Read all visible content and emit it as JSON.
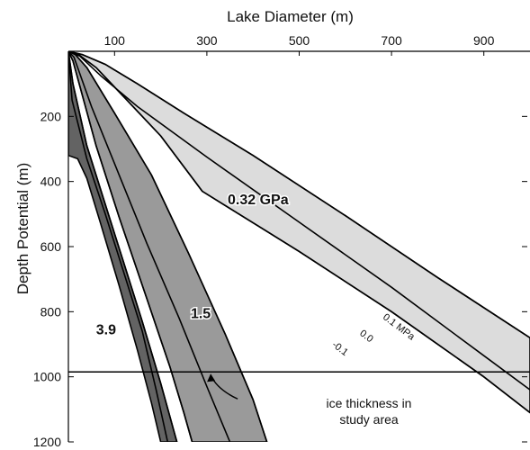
{
  "chart_data": {
    "type": "line",
    "title": "",
    "xlabel": "Lake Diameter (m)",
    "ylabel": "Depth Potential (m)",
    "x_axis_position": "top",
    "y_axis_inverted": true,
    "xlim": [
      0,
      1000
    ],
    "ylim": [
      0,
      1200
    ],
    "x_ticks": [
      100,
      300,
      500,
      700,
      900
    ],
    "y_ticks": [
      200,
      400,
      600,
      800,
      1000,
      1200
    ],
    "grid": false,
    "colors": {
      "band_0.32": "#dcdcdc",
      "band_1.5": "#9a9a9a",
      "band_3.9": "#636363",
      "lines": "#000000"
    },
    "bands": [
      {
        "label": "0.32 GPa",
        "upper": [
          [
            0,
            0
          ],
          [
            30,
            10
          ],
          [
            80,
            40
          ],
          [
            150,
            100
          ],
          [
            250,
            190
          ],
          [
            400,
            320
          ],
          [
            600,
            505
          ],
          [
            800,
            695
          ],
          [
            1000,
            880
          ]
        ],
        "lower": [
          [
            0,
            0
          ],
          [
            20,
            8
          ],
          [
            60,
            50
          ],
          [
            120,
            140
          ],
          [
            200,
            260
          ],
          [
            290,
            430
          ],
          [
            500,
            615
          ],
          [
            700,
            800
          ],
          [
            900,
            1000
          ],
          [
            1000,
            1110
          ]
        ]
      },
      {
        "label": "1.5",
        "upper": [
          [
            0,
            0
          ],
          [
            15,
            10
          ],
          [
            40,
            50
          ],
          [
            100,
            190
          ],
          [
            180,
            380
          ],
          [
            260,
            620
          ],
          [
            340,
            870
          ],
          [
            400,
            1070
          ],
          [
            430,
            1200
          ]
        ],
        "lower": [
          [
            0,
            0
          ],
          [
            10,
            30
          ],
          [
            60,
            290
          ],
          [
            110,
            510
          ],
          [
            170,
            760
          ],
          [
            220,
            970
          ],
          [
            250,
            1110
          ],
          [
            268,
            1200
          ]
        ]
      },
      {
        "label": "3.9",
        "upper": [
          [
            0,
            0
          ],
          [
            10,
            100
          ],
          [
            40,
            290
          ],
          [
            80,
            470
          ],
          [
            120,
            650
          ],
          [
            160,
            830
          ],
          [
            200,
            1020
          ],
          [
            235,
            1200
          ]
        ],
        "lower": [
          [
            0,
            320
          ],
          [
            20,
            330
          ],
          [
            40,
            390
          ],
          [
            70,
            530
          ],
          [
            110,
            720
          ],
          [
            150,
            920
          ],
          [
            180,
            1080
          ],
          [
            200,
            1200
          ]
        ]
      }
    ],
    "lines": [
      {
        "label": "0.1 MPa",
        "points": [
          [
            0,
            0
          ],
          [
            30,
            10
          ],
          [
            80,
            40
          ],
          [
            150,
            100
          ],
          [
            250,
            190
          ],
          [
            400,
            320
          ],
          [
            600,
            505
          ],
          [
            800,
            695
          ],
          [
            1000,
            880
          ]
        ]
      },
      {
        "label": "0.0",
        "points": [
          [
            0,
            0
          ],
          [
            25,
            15
          ],
          [
            70,
            75
          ],
          [
            150,
            170
          ],
          [
            300,
            325
          ],
          [
            500,
            525
          ],
          [
            700,
            725
          ],
          [
            900,
            935
          ],
          [
            1000,
            1040
          ]
        ]
      },
      {
        "label": "-0.1",
        "points": [
          [
            0,
            0
          ],
          [
            20,
            8
          ],
          [
            60,
            50
          ],
          [
            120,
            140
          ],
          [
            200,
            260
          ],
          [
            290,
            430
          ],
          [
            500,
            615
          ],
          [
            700,
            800
          ],
          [
            900,
            1000
          ],
          [
            1000,
            1110
          ]
        ]
      },
      {
        "label": "",
        "points": [
          [
            0,
            0
          ],
          [
            15,
            10
          ],
          [
            40,
            50
          ],
          [
            100,
            190
          ],
          [
            180,
            380
          ],
          [
            260,
            620
          ],
          [
            340,
            870
          ],
          [
            400,
            1070
          ],
          [
            430,
            1200
          ]
        ]
      },
      {
        "label": "",
        "points": [
          [
            0,
            0
          ],
          [
            12,
            18
          ],
          [
            50,
            170
          ],
          [
            110,
            380
          ],
          [
            170,
            590
          ],
          [
            240,
            820
          ],
          [
            300,
            1030
          ],
          [
            350,
            1200
          ]
        ]
      },
      {
        "label": "",
        "points": [
          [
            0,
            0
          ],
          [
            10,
            30
          ],
          [
            60,
            290
          ],
          [
            110,
            510
          ],
          [
            170,
            760
          ],
          [
            220,
            970
          ],
          [
            250,
            1110
          ],
          [
            268,
            1200
          ]
        ]
      },
      {
        "label": "",
        "points": [
          [
            0,
            0
          ],
          [
            10,
            100
          ],
          [
            40,
            290
          ],
          [
            80,
            470
          ],
          [
            120,
            650
          ],
          [
            160,
            830
          ],
          [
            200,
            1020
          ],
          [
            235,
            1200
          ]
        ]
      },
      {
        "label": "",
        "points": [
          [
            0,
            0
          ],
          [
            8,
            150
          ],
          [
            40,
            330
          ],
          [
            80,
            500
          ],
          [
            120,
            680
          ],
          [
            160,
            860
          ],
          [
            190,
            1040
          ],
          [
            215,
            1200
          ]
        ]
      }
    ],
    "ice_thickness_line": {
      "y": 985,
      "annotation": [
        "ice thickness in",
        "study area"
      ],
      "arrow_tip": [
        240,
        985
      ]
    }
  }
}
